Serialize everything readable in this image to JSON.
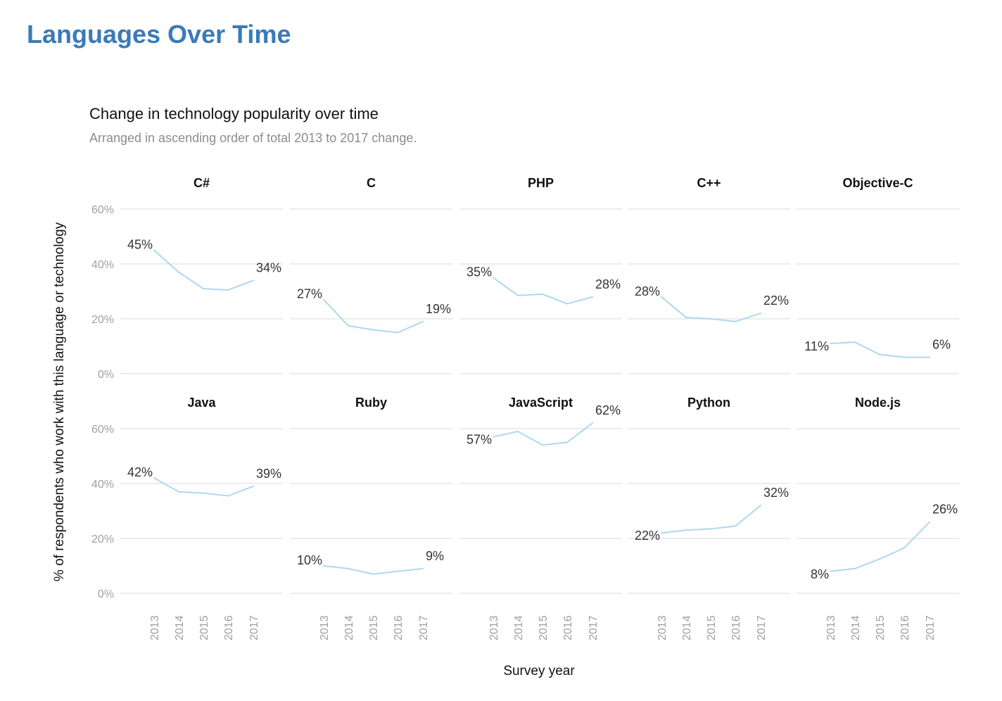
{
  "page": {
    "heading": "Languages Over Time"
  },
  "colors": {
    "heading": "#3a7ab8",
    "line": "#acd9f0",
    "grid": "#e6e6e6"
  },
  "chart_data": {
    "type": "line",
    "layout": "small-multiples",
    "title": "Change in technology popularity over time",
    "subtitle": "Arranged in ascending order of total 2013 to 2017 change.",
    "xlabel": "Survey year",
    "ylabel": "% of respondents who work with this language or technology",
    "x": [
      "2013",
      "2014",
      "2015",
      "2016",
      "2017"
    ],
    "y_ticks": [
      "0%",
      "20%",
      "40%",
      "60%"
    ],
    "ylim": [
      0,
      60
    ],
    "grid": true,
    "series": [
      {
        "name": "C#",
        "values": [
          45,
          37,
          31,
          30.5,
          34
        ],
        "first_label": "45%",
        "last_label": "34%"
      },
      {
        "name": "C",
        "values": [
          27,
          17.5,
          16,
          15,
          19
        ],
        "first_label": "27%",
        "last_label": "19%"
      },
      {
        "name": "PHP",
        "values": [
          35,
          28.5,
          29,
          25.5,
          28
        ],
        "first_label": "35%",
        "last_label": "28%"
      },
      {
        "name": "C++",
        "values": [
          28,
          20.5,
          20,
          19,
          22
        ],
        "first_label": "28%",
        "last_label": "22%"
      },
      {
        "name": "Objective-C",
        "values": [
          11,
          11.5,
          7,
          6,
          6
        ],
        "first_label": "11%",
        "last_label": "6%"
      },
      {
        "name": "Java",
        "values": [
          42,
          37,
          36.5,
          35.5,
          39
        ],
        "first_label": "42%",
        "last_label": "39%"
      },
      {
        "name": "Ruby",
        "values": [
          10,
          9,
          7,
          8,
          9
        ],
        "first_label": "10%",
        "last_label": "9%"
      },
      {
        "name": "JavaScript",
        "values": [
          57,
          59,
          54,
          55,
          62
        ],
        "first_label": "57%",
        "last_label": "62%"
      },
      {
        "name": "Python",
        "values": [
          22,
          23,
          23.5,
          24.5,
          32
        ],
        "first_label": "22%",
        "last_label": "32%"
      },
      {
        "name": "Node.js",
        "values": [
          8,
          9,
          12.5,
          16.5,
          26
        ],
        "first_label": "8%",
        "last_label": "26%"
      }
    ]
  }
}
